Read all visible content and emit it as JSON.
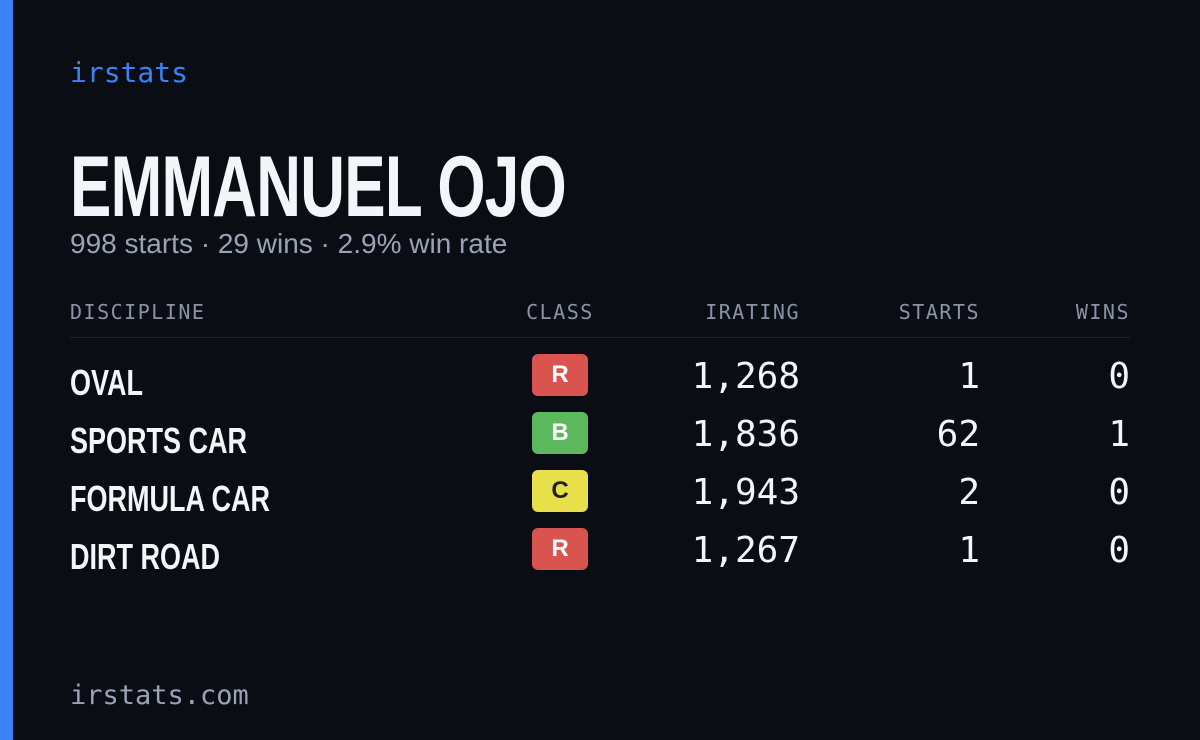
{
  "brand": "irstats",
  "player": {
    "name": "EMMANUEL OJO",
    "summary": "998 starts · 29 wins · 2.9% win rate"
  },
  "table": {
    "columns": [
      "DISCIPLINE",
      "CLASS",
      "IRATING",
      "STARTS",
      "WINS"
    ],
    "rows": [
      {
        "discipline": "OVAL",
        "class": "R",
        "class_color": "#d9534f",
        "irating": "1,268",
        "starts": "1",
        "wins": "0"
      },
      {
        "discipline": "SPORTS CAR",
        "class": "B",
        "class_color": "#5cb85c",
        "irating": "1,836",
        "starts": "62",
        "wins": "1"
      },
      {
        "discipline": "FORMULA CAR",
        "class": "C",
        "class_color": "#e8e04a",
        "irating": "1,943",
        "starts": "2",
        "wins": "0"
      },
      {
        "discipline": "DIRT ROAD",
        "class": "R",
        "class_color": "#d9534f",
        "irating": "1,267",
        "starts": "1",
        "wins": "0"
      }
    ]
  },
  "footer": "irstats.com"
}
